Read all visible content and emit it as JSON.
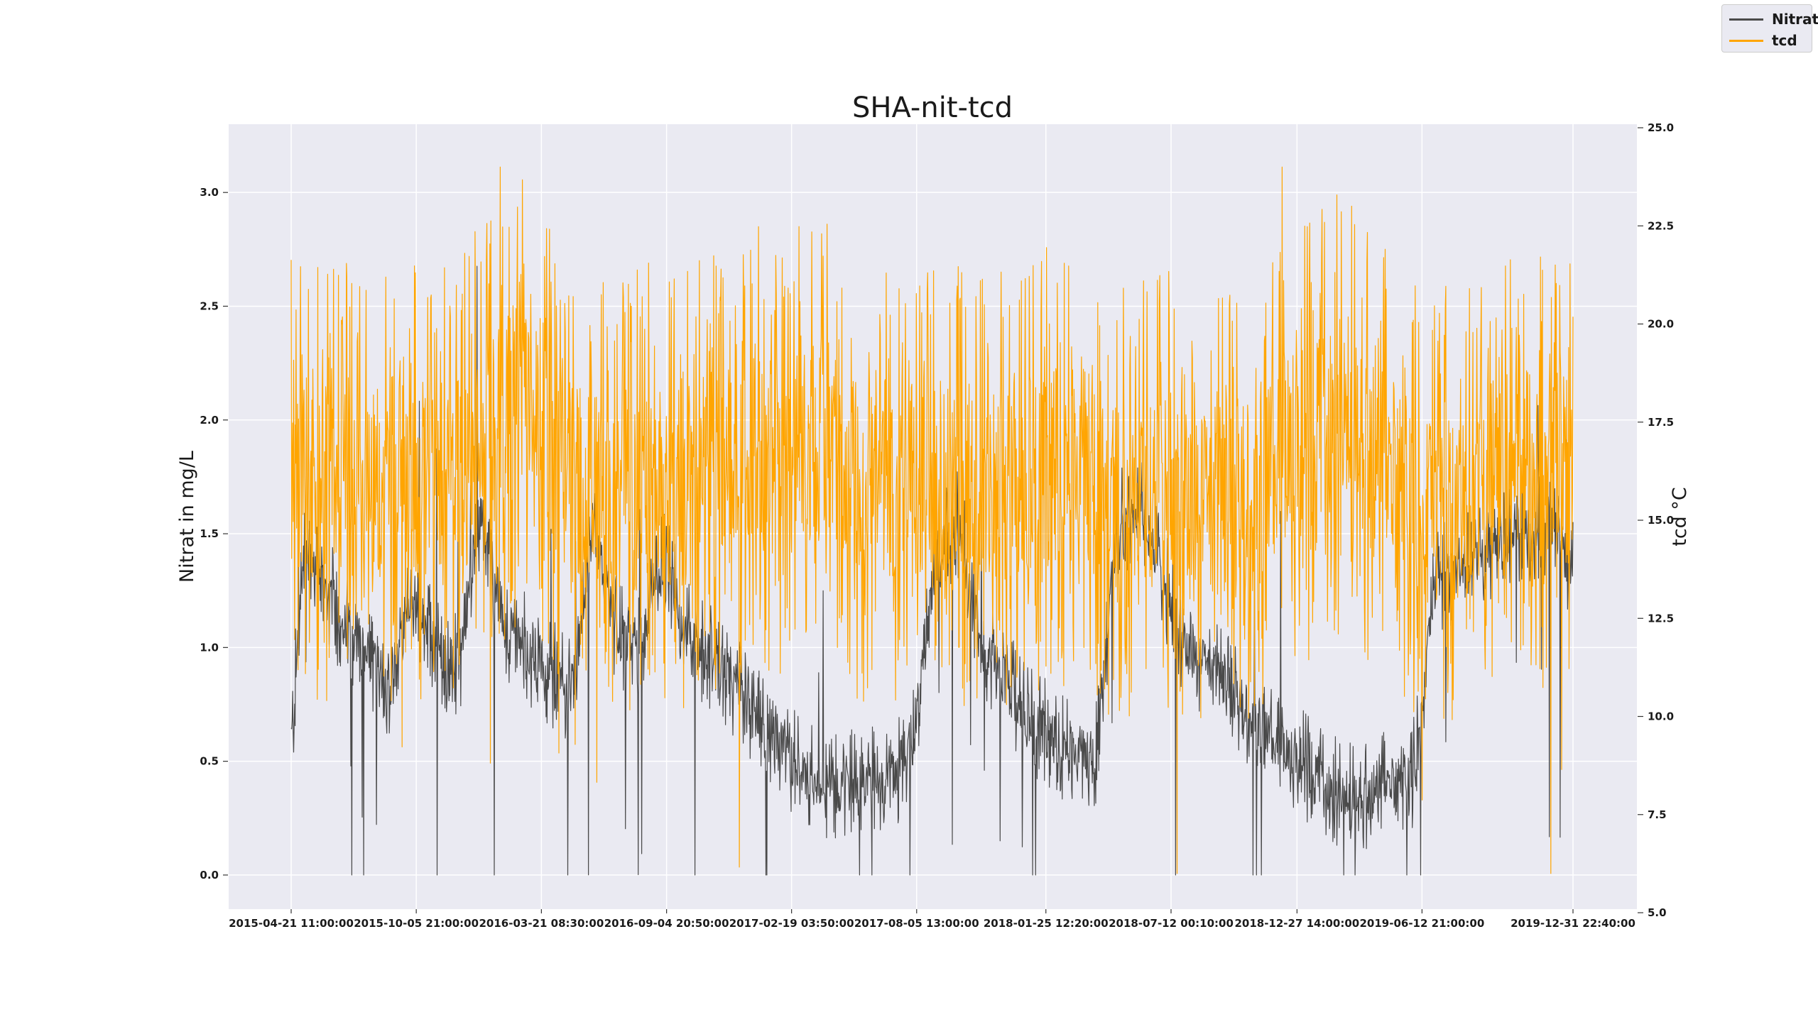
{
  "chart_data": {
    "type": "line",
    "title": "SHA-nit-tcd",
    "ylabel": "Nitrat in mg/L",
    "y2label": "tcd °C",
    "xlabel": "",
    "x_tick_labels": [
      "2015-04-21 11:00:00",
      "2015-10-05 21:00:00",
      "2016-03-21 08:30:00",
      "2016-09-04 20:50:00",
      "2017-02-19 03:50:00",
      "2017-08-05 13:00:00",
      "2018-01-25 12:20:00",
      "2018-07-12 00:10:00",
      "2018-12-27 14:00:00",
      "2019-06-12 21:00:00",
      "2019-12-31 22:40:00"
    ],
    "xlim": [
      "2015-04-21 11:00:00",
      "2019-12-31 22:40:00"
    ],
    "ylim": [
      -0.15,
      3.3
    ],
    "y_ticks": [
      "0.0",
      "0.5",
      "1.0",
      "1.5",
      "2.0",
      "2.5",
      "3.0"
    ],
    "y2lim": [
      5.0,
      25.0
    ],
    "y2_ticks": [
      "5.0",
      "7.5",
      "10.0",
      "12.5",
      "15.0",
      "17.5",
      "20.0",
      "22.5",
      "25.0"
    ],
    "grid": true,
    "legend_position": "top-right",
    "series": [
      {
        "name": "Nitrat",
        "axis": "left",
        "color": "#4a4a4a",
        "x": [
          "2015-04-21",
          "2015-05-10",
          "2015-06-01",
          "2015-07-01",
          "2015-08-01",
          "2015-09-01",
          "2015-10-01",
          "2015-11-01",
          "2015-12-01",
          "2016-01-01",
          "2016-02-01",
          "2016-03-01",
          "2016-04-01",
          "2016-05-01",
          "2016-06-01",
          "2016-07-01",
          "2016-08-01",
          "2016-09-01",
          "2016-10-01",
          "2016-11-01",
          "2016-12-01",
          "2017-01-01",
          "2017-02-01",
          "2017-03-01",
          "2017-04-01",
          "2017-05-01",
          "2017-06-01",
          "2017-07-01",
          "2017-08-01",
          "2017-09-01",
          "2017-10-01",
          "2017-11-01",
          "2017-12-01",
          "2018-01-01",
          "2018-02-01",
          "2018-03-01",
          "2018-04-01",
          "2018-05-01",
          "2018-06-01",
          "2018-07-01",
          "2018-08-01",
          "2018-09-01",
          "2018-10-01",
          "2018-11-01",
          "2018-12-01",
          "2019-01-01",
          "2019-02-01",
          "2019-03-01",
          "2019-04-01",
          "2019-05-01",
          "2019-06-01",
          "2019-07-01",
          "2019-08-01",
          "2019-09-01",
          "2019-10-01",
          "2019-11-01",
          "2019-12-01",
          "2019-12-31"
        ],
        "values": [
          0.55,
          1.45,
          1.3,
          1.1,
          0.95,
          0.85,
          1.2,
          1.0,
          0.9,
          1.6,
          1.1,
          1.0,
          0.9,
          0.8,
          1.5,
          1.05,
          1.0,
          1.4,
          1.05,
          0.95,
          0.85,
          0.7,
          0.6,
          0.45,
          0.4,
          0.38,
          0.45,
          0.4,
          0.6,
          1.4,
          1.55,
          1.0,
          0.85,
          0.7,
          0.6,
          0.55,
          0.5,
          1.55,
          1.6,
          1.3,
          1.0,
          0.9,
          0.8,
          0.7,
          0.55,
          0.5,
          0.4,
          0.35,
          0.35,
          0.4,
          0.45,
          1.3,
          1.35,
          1.4,
          1.45,
          1.5,
          1.55,
          1.35
        ]
      },
      {
        "name": "tcd",
        "axis": "right",
        "color": "#ffa500",
        "x": [
          "2015-04-21",
          "2015-05-10",
          "2015-06-01",
          "2015-07-01",
          "2015-08-01",
          "2015-09-01",
          "2015-10-01",
          "2015-11-01",
          "2015-12-01",
          "2016-01-01",
          "2016-02-01",
          "2016-03-01",
          "2016-04-01",
          "2016-05-01",
          "2016-06-01",
          "2016-07-01",
          "2016-08-01",
          "2016-09-01",
          "2016-10-01",
          "2016-11-01",
          "2016-12-01",
          "2017-01-01",
          "2017-02-01",
          "2017-03-01",
          "2017-04-01",
          "2017-05-01",
          "2017-06-01",
          "2017-07-01",
          "2017-08-01",
          "2017-09-01",
          "2017-10-01",
          "2017-11-01",
          "2017-12-01",
          "2018-01-01",
          "2018-02-01",
          "2018-03-01",
          "2018-04-01",
          "2018-05-01",
          "2018-06-01",
          "2018-07-01",
          "2018-08-01",
          "2018-09-01",
          "2018-10-01",
          "2018-11-01",
          "2018-12-01",
          "2019-01-01",
          "2019-02-01",
          "2019-03-01",
          "2019-04-01",
          "2019-05-01",
          "2019-06-01",
          "2019-07-01",
          "2019-08-01",
          "2019-09-01",
          "2019-10-01",
          "2019-11-01",
          "2019-12-01",
          "2019-12-31"
        ],
        "values": [
          16.5,
          16.0,
          16.0,
          16.0,
          15.8,
          16.0,
          16.0,
          16.2,
          16.3,
          16.8,
          17.5,
          18.5,
          17.0,
          16.0,
          15.5,
          15.3,
          15.8,
          16.0,
          15.8,
          16.0,
          16.5,
          17.0,
          16.5,
          17.5,
          17.0,
          16.5,
          16.0,
          15.5,
          15.5,
          15.8,
          16.0,
          15.8,
          16.0,
          16.2,
          16.3,
          16.5,
          16.0,
          15.5,
          15.5,
          15.8,
          15.6,
          15.0,
          15.2,
          15.8,
          16.3,
          16.8,
          17.5,
          17.8,
          17.0,
          16.0,
          15.8,
          15.5,
          15.5,
          15.8,
          16.0,
          16.3,
          16.5,
          16.5
        ]
      }
    ]
  }
}
